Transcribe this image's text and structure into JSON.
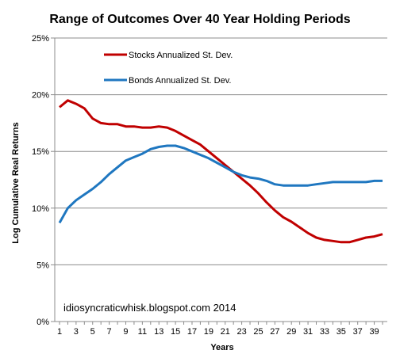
{
  "chart_data": {
    "type": "line",
    "title": "Range of Outcomes Over 40 Year Holding Periods",
    "xlabel": "Years",
    "ylabel": "Log Cumulative Real Returns",
    "x": [
      1,
      2,
      3,
      4,
      5,
      6,
      7,
      8,
      9,
      10,
      11,
      12,
      13,
      14,
      15,
      16,
      17,
      18,
      19,
      20,
      21,
      22,
      23,
      24,
      25,
      26,
      27,
      28,
      29,
      30,
      31,
      32,
      33,
      34,
      35,
      36,
      37,
      38,
      39,
      40
    ],
    "xticks": [
      1,
      3,
      5,
      7,
      9,
      11,
      13,
      15,
      17,
      19,
      21,
      23,
      25,
      27,
      29,
      31,
      33,
      35,
      37,
      39
    ],
    "ylim": [
      0,
      0.25
    ],
    "yticks": [
      0,
      0.05,
      0.1,
      0.15,
      0.2,
      0.25
    ],
    "ytick_labels": [
      "0%",
      "5%",
      "10%",
      "15%",
      "20%",
      "25%"
    ],
    "grid": "horizontal",
    "legend_position": "top-left",
    "annotation": "idiosyncraticwhisk.blogspot.com  2014",
    "series": [
      {
        "name": "Stocks Annualized St. Dev.",
        "color": "#c00000",
        "values": [
          0.189,
          0.195,
          0.192,
          0.188,
          0.179,
          0.175,
          0.174,
          0.174,
          0.172,
          0.172,
          0.171,
          0.171,
          0.172,
          0.171,
          0.168,
          0.164,
          0.16,
          0.156,
          0.15,
          0.144,
          0.138,
          0.132,
          0.126,
          0.12,
          0.113,
          0.105,
          0.098,
          0.092,
          0.088,
          0.083,
          0.078,
          0.074,
          0.072,
          0.071,
          0.07,
          0.07,
          0.072,
          0.074,
          0.075,
          0.077
        ]
      },
      {
        "name": "Bonds Annualized St. Dev.",
        "color": "#1f77c0",
        "values": [
          0.087,
          0.1,
          0.107,
          0.112,
          0.117,
          0.123,
          0.13,
          0.136,
          0.142,
          0.145,
          0.148,
          0.152,
          0.154,
          0.155,
          0.155,
          0.153,
          0.15,
          0.147,
          0.144,
          0.14,
          0.136,
          0.132,
          0.129,
          0.127,
          0.126,
          0.124,
          0.121,
          0.12,
          0.12,
          0.12,
          0.12,
          0.121,
          0.122,
          0.123,
          0.123,
          0.123,
          0.123,
          0.123,
          0.124,
          0.124
        ]
      }
    ]
  }
}
